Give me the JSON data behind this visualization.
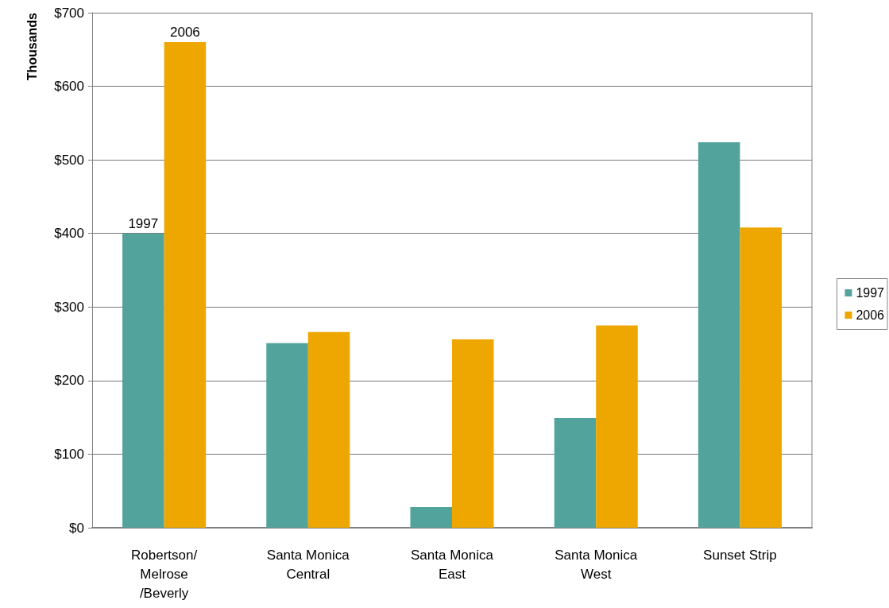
{
  "chart_data": {
    "type": "bar",
    "ylabel": "Thousands",
    "categories": [
      "Robertson/\nMelrose\n/Beverly",
      "Santa Monica\nCentral",
      "Santa Monica\nEast",
      "Santa Monica\nWest",
      "Sunset Strip"
    ],
    "series": [
      {
        "name": "1997",
        "color": "#52a39b",
        "values": [
          400,
          251,
          28,
          149,
          524
        ]
      },
      {
        "name": "2006",
        "color": "#eea700",
        "values": [
          660,
          266,
          256,
          275,
          408
        ]
      }
    ],
    "ylim": [
      0,
      700
    ],
    "yticks": [
      {
        "value": 0,
        "label": "$0"
      },
      {
        "value": 100,
        "label": "$100"
      },
      {
        "value": 200,
        "label": "$200"
      },
      {
        "value": 300,
        "label": "$300"
      },
      {
        "value": 400,
        "label": "$400"
      },
      {
        "value": 500,
        "label": "$500"
      },
      {
        "value": 600,
        "label": "$600"
      },
      {
        "value": 700,
        "label": "$700"
      }
    ],
    "annotations": [
      {
        "text": "1997",
        "x": "Robertson/\nMelrose\n/Beverly",
        "y": 400
      },
      {
        "text": "2006",
        "x": "Robertson/\nMelrose\n/Beverly",
        "y": 660
      }
    ],
    "grid": "y",
    "legend": "right"
  }
}
